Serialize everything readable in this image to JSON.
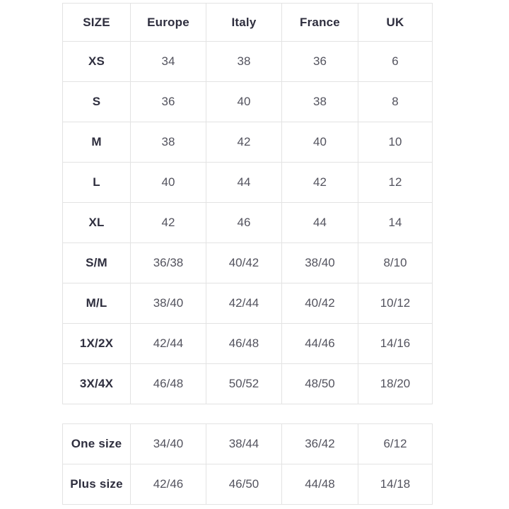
{
  "colors": {
    "background": "#ffffff",
    "border": "#e3e3e3",
    "header_text": "#2e2e3e",
    "value_text": "#53535e"
  },
  "chart_data": [
    {
      "type": "table",
      "columns": [
        "SIZE",
        "Europe",
        "Italy",
        "France",
        "UK"
      ],
      "rows": [
        {
          "label": "XS",
          "values": [
            "34",
            "38",
            "36",
            "6"
          ]
        },
        {
          "label": "S",
          "values": [
            "36",
            "40",
            "38",
            "8"
          ]
        },
        {
          "label": "M",
          "values": [
            "38",
            "42",
            "40",
            "10"
          ]
        },
        {
          "label": "L",
          "values": [
            "40",
            "44",
            "42",
            "12"
          ]
        },
        {
          "label": "XL",
          "values": [
            "42",
            "46",
            "44",
            "14"
          ]
        },
        {
          "label": "S/M",
          "values": [
            "36/38",
            "40/42",
            "38/40",
            "8/10"
          ]
        },
        {
          "label": "M/L",
          "values": [
            "38/40",
            "42/44",
            "40/42",
            "10/12"
          ]
        },
        {
          "label": "1X/2X",
          "values": [
            "42/44",
            "46/48",
            "44/46",
            "14/16"
          ]
        },
        {
          "label": "3X/4X",
          "values": [
            "46/48",
            "50/52",
            "48/50",
            "18/20"
          ]
        }
      ]
    },
    {
      "type": "table",
      "columns": [],
      "rows": [
        {
          "label": "One size",
          "values": [
            "34/40",
            "38/44",
            "36/42",
            "6/12"
          ]
        },
        {
          "label": "Plus size",
          "values": [
            "42/46",
            "46/50",
            "44/48",
            "14/18"
          ]
        }
      ]
    }
  ]
}
